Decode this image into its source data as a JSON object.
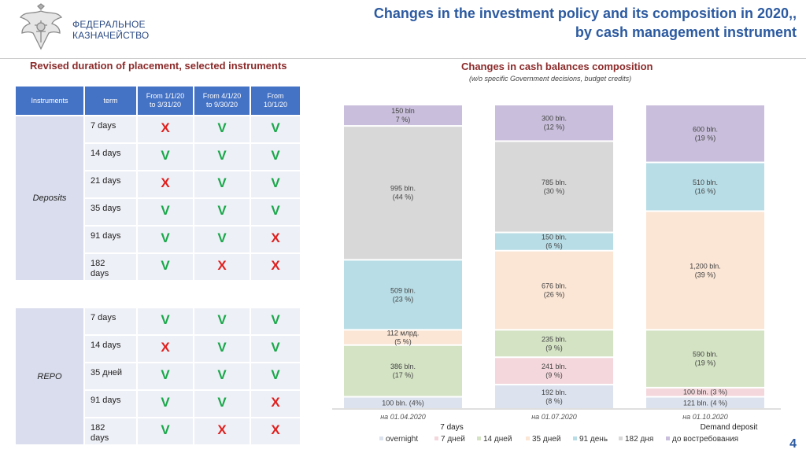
{
  "header": {
    "org_line1": "ФЕДЕРАЛЬНОЕ",
    "org_line2": "КАЗНАЧЕЙСТВО",
    "title_line1": "Changes in the investment policy and its composition in 2020,,",
    "title_line2": "by cash management instrument",
    "page_number": "4"
  },
  "left_panel": {
    "title": "Revised duration of placement, selected instruments",
    "columns": [
      "Instruments",
      "term",
      "From 1/1/20\nto 3/31/20",
      "From 4/1/20\nto 9/30/20",
      "From\n10/1/20"
    ],
    "groups": [
      {
        "name": "Deposits",
        "rows": [
          {
            "term": "7 days",
            "marks": [
              "X",
              "V",
              "V"
            ]
          },
          {
            "term": "14 days",
            "marks": [
              "V",
              "V",
              "V"
            ]
          },
          {
            "term": "21 days",
            "marks": [
              "X",
              "V",
              "V"
            ]
          },
          {
            "term": "35 days",
            "marks": [
              "V",
              "V",
              "V"
            ]
          },
          {
            "term": "91 days",
            "marks": [
              "V",
              "V",
              "X"
            ]
          },
          {
            "term": "182\ndays",
            "marks": [
              "V",
              "X",
              "X"
            ]
          }
        ]
      },
      {
        "name": "REPO",
        "rows": [
          {
            "term": "7 days",
            "marks": [
              "V",
              "V",
              "V"
            ]
          },
          {
            "term": "14 days",
            "marks": [
              "X",
              "V",
              "V"
            ]
          },
          {
            "term": "35 дней",
            "marks": [
              "V",
              "V",
              "V"
            ]
          },
          {
            "term": "91 days",
            "marks": [
              "V",
              "V",
              "X"
            ]
          },
          {
            "term": "182\ndays",
            "marks": [
              "V",
              "X",
              "X"
            ]
          }
        ]
      }
    ],
    "colors": {
      "v": "#1aa84a",
      "x": "#e0201e",
      "header": "#4472c4"
    }
  },
  "right_panel": {
    "title": "Changes in cash balances composition",
    "subtitle": "(w/o specific Government decisions, budget credits)"
  },
  "chart_data": {
    "type": "bar",
    "stacked": "100%",
    "categories": [
      "на 01.04.2020",
      "на 01.07.2020",
      "на 01.10.2020"
    ],
    "series": [
      {
        "name": "overnight",
        "color": "#dce3ef",
        "values": [
          4,
          8,
          4
        ],
        "labels": [
          "100 bln. (4%)",
          "192 bln.\n(8 %)",
          "121  bln. (4 %)"
        ]
      },
      {
        "name": "7 дней",
        "color": "#f4d7dc",
        "values": [
          0,
          9,
          3
        ],
        "labels": [
          "",
          "241 bln.\n(9 %)",
          "100 bln. (3 %)"
        ]
      },
      {
        "name": "14 дней",
        "color": "#d4e3c4",
        "values": [
          17,
          9,
          19
        ],
        "labels": [
          "386 bln.\n(17 %)",
          "235 bln.\n(9 %)",
          "590 bln.\n(19 %)"
        ]
      },
      {
        "name": "35 дней",
        "color": "#fbe5d4",
        "values": [
          5,
          26,
          39
        ],
        "labels": [
          "112 млрд.\n(5 %)",
          "676 bln.\n(26 %)",
          "1,200 bln.\n(39 %)"
        ]
      },
      {
        "name": "91 день",
        "color": "#b8dde6",
        "values": [
          23,
          6,
          16
        ],
        "labels": [
          "509 bln.\n(23 %)",
          "150 bln.\n(6 %)",
          "510 bln.\n(16 %)"
        ]
      },
      {
        "name": "182 дня",
        "color": "#d8d8d8",
        "values": [
          44,
          30,
          0
        ],
        "labels": [
          "995 bln.\n(44 %)",
          "785 bln.\n(30 %)",
          ""
        ]
      },
      {
        "name": "до востребования",
        "color": "#c9bfdc",
        "values": [
          7,
          12,
          19
        ],
        "labels": [
          "150 bln\n7 %)",
          "300 bln.\n(12 %)",
          "600 bln.\n(19 %)"
        ]
      }
    ],
    "legend_placement": "bottom",
    "annotations": [
      "7 days",
      "Demand deposit"
    ],
    "grid": false
  }
}
